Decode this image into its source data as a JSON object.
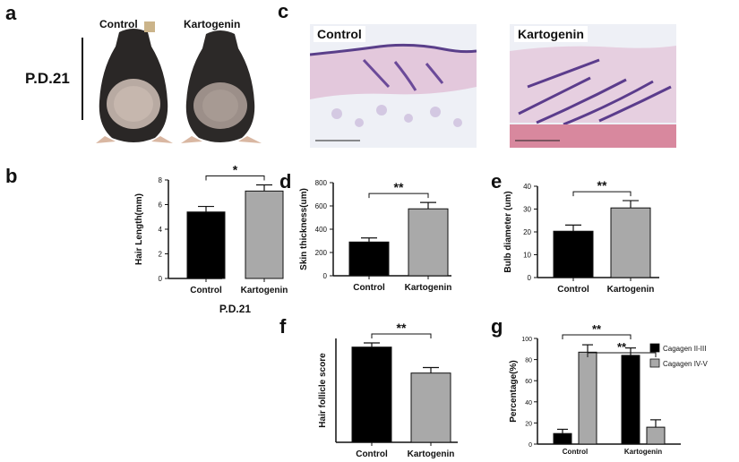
{
  "panels": {
    "a": "a",
    "b": "b",
    "c": "c",
    "d": "d",
    "e": "e",
    "f": "f",
    "g": "g"
  },
  "photo_panel": {
    "control_label": "Control",
    "kartogenin_label": "Kartogenin",
    "age_label": "P.D.21"
  },
  "histology_panel": {
    "control_label": "Control",
    "kartogenin_label": "Kartogenin"
  },
  "colors": {
    "control_bar": "#000000",
    "kartogenin_bar": "#a9a9a9",
    "axis": "#111111"
  },
  "chart_data": [
    {
      "id": "b",
      "type": "bar",
      "categories": [
        "Control",
        "Kartogenin"
      ],
      "values": [
        5.4,
        7.1
      ],
      "errors": [
        0.45,
        0.5
      ],
      "ylabel": "Hair Length(mm)",
      "xlabel": "P.D.21",
      "ylim": [
        0,
        8
      ],
      "yticks": [
        "0",
        "2",
        "4",
        "6",
        "8"
      ],
      "significance": [
        {
          "from": 0,
          "to": 1,
          "label": "*"
        }
      ]
    },
    {
      "id": "d",
      "type": "bar",
      "categories": [
        "Control",
        "Kartogenin"
      ],
      "values": [
        290,
        575
      ],
      "errors": [
        35,
        55
      ],
      "ylabel": "Skin thickness(um)",
      "ylim": [
        0,
        800
      ],
      "yticks": [
        "0",
        "200",
        "400",
        "600",
        "800"
      ],
      "significance": [
        {
          "from": 0,
          "to": 1,
          "label": "**"
        }
      ]
    },
    {
      "id": "e",
      "type": "bar",
      "categories": [
        "Control",
        "Kartogenin"
      ],
      "values": [
        20.3,
        30.5
      ],
      "errors": [
        2.7,
        3.2
      ],
      "ylabel": "Bulb diameter  (um)",
      "ylim": [
        0,
        40
      ],
      "yticks": [
        "0",
        "10",
        "20",
        "30",
        "40"
      ],
      "significance": [
        {
          "from": 0,
          "to": 1,
          "label": "**"
        }
      ]
    },
    {
      "id": "f",
      "type": "bar",
      "categories": [
        "Control",
        "Kartogenin"
      ],
      "values": [
        275,
        200
      ],
      "errors": [
        12,
        16
      ],
      "ylabel": "Hair follicle score",
      "ylim": [
        0,
        300
      ],
      "yticks": [],
      "significance": [
        {
          "from": 0,
          "to": 1,
          "label": "**"
        }
      ]
    },
    {
      "id": "g",
      "type": "bar",
      "categories": [
        "Control",
        "Kartogenin"
      ],
      "series": [
        {
          "name": "Cagagen II-III",
          "values": [
            10,
            84
          ],
          "errors": [
            4,
            7
          ]
        },
        {
          "name": "Cagagen IV-V",
          "values": [
            87,
            16
          ],
          "errors": [
            7,
            7
          ]
        }
      ],
      "ylabel": "Percentage(%)",
      "ylim": [
        0,
        100
      ],
      "yticks": [
        "0",
        "20",
        "40",
        "60",
        "80",
        "100"
      ],
      "legend": "top-right",
      "significance": [
        {
          "label": "**",
          "from_group": 0,
          "from_series": 0,
          "to_group": 1,
          "to_series": 0
        },
        {
          "label": "**",
          "from_group": 0,
          "from_series": 1,
          "to_group": 1,
          "to_series": 1
        }
      ]
    }
  ]
}
